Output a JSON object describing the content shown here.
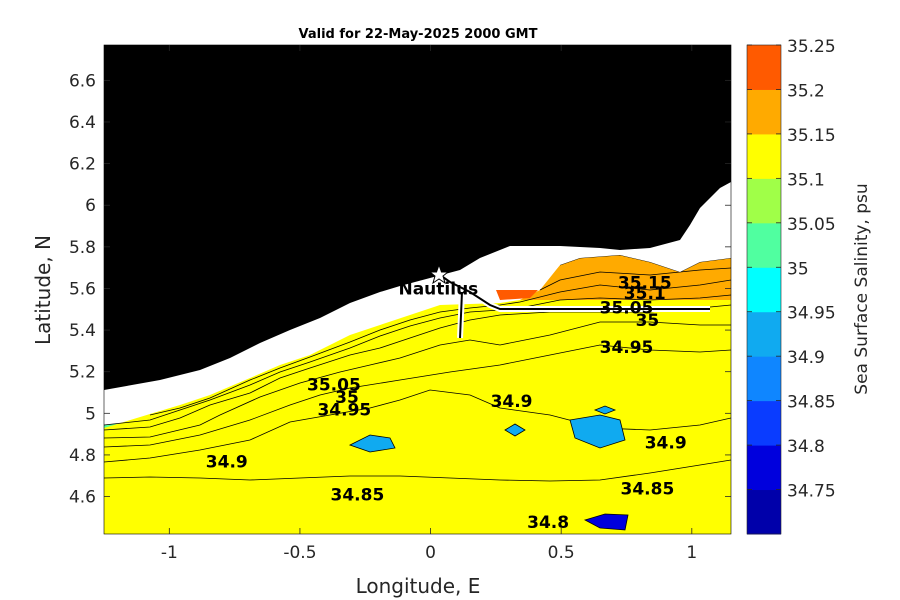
{
  "chart_data": {
    "type": "heatmap",
    "title": "Valid for 22-May-2025 2000 GMT",
    "xlabel": "Longitude, E",
    "ylabel": "Latitude, N",
    "colorbar_label": "Sea Surface Salinity, psu",
    "xlim": [
      -1.25,
      1.15
    ],
    "ylim": [
      4.42,
      6.77
    ],
    "x_ticks": [
      -1,
      -0.5,
      0,
      0.5,
      1
    ],
    "x_tick_labels": [
      "-1",
      "-0.5",
      "0",
      "0.5",
      "1"
    ],
    "y_ticks": [
      4.6,
      4.8,
      5,
      5.2,
      5.4,
      5.6,
      5.8,
      6,
      6.2,
      6.4,
      6.6
    ],
    "y_tick_labels": [
      "4.6",
      "4.8",
      "5",
      "5.2",
      "5.4",
      "5.6",
      "5.8",
      "6",
      "6.2",
      "6.4",
      "6.6"
    ],
    "colorbar_levels": [
      34.75,
      34.8,
      34.85,
      34.9,
      34.95,
      35,
      35.05,
      35.1,
      35.15,
      35.2,
      35.25
    ],
    "colorbar_tick_labels": [
      "35.25",
      "35.2",
      "35.15",
      "35.1",
      "35.05",
      "35",
      "34.95",
      "34.9",
      "34.85",
      "34.8",
      "34.75"
    ],
    "band_colors": [
      "#0000aa",
      "#0000dd",
      "#0a3cff",
      "#0f86ff",
      "#10aaf0",
      "#00ffff",
      "#50ffa0",
      "#a0ff48",
      "#ffff00",
      "#ffaa00",
      "#ff5a00"
    ],
    "land_color": "#000000",
    "grid": false,
    "colorbar_position": "right",
    "contour_labels": [
      {
        "text": "35.15",
        "lon": 0.82,
        "lat": 5.6
      },
      {
        "text": "35.1",
        "lon": 0.82,
        "lat": 5.55
      },
      {
        "text": "35.05",
        "lon": 0.75,
        "lat": 5.48
      },
      {
        "text": "35",
        "lon": 0.83,
        "lat": 5.42
      },
      {
        "text": "34.95",
        "lon": 0.75,
        "lat": 5.29
      },
      {
        "text": "35.05",
        "lon": -0.37,
        "lat": 5.11
      },
      {
        "text": "35",
        "lon": -0.32,
        "lat": 5.05
      },
      {
        "text": "34.95",
        "lon": -0.33,
        "lat": 4.99
      },
      {
        "text": "34.9",
        "lon": 0.31,
        "lat": 5.03
      },
      {
        "text": "34.9",
        "lon": 0.9,
        "lat": 4.83
      },
      {
        "text": "34.9",
        "lon": -0.78,
        "lat": 4.74
      },
      {
        "text": "34.85",
        "lon": -0.28,
        "lat": 4.58
      },
      {
        "text": "34.85",
        "lon": 0.83,
        "lat": 4.61
      },
      {
        "text": "34.8",
        "lon": 0.45,
        "lat": 4.45
      }
    ],
    "annotations": [
      {
        "text": "Nautilus",
        "lon": 0.03,
        "lat": 5.57
      }
    ]
  }
}
